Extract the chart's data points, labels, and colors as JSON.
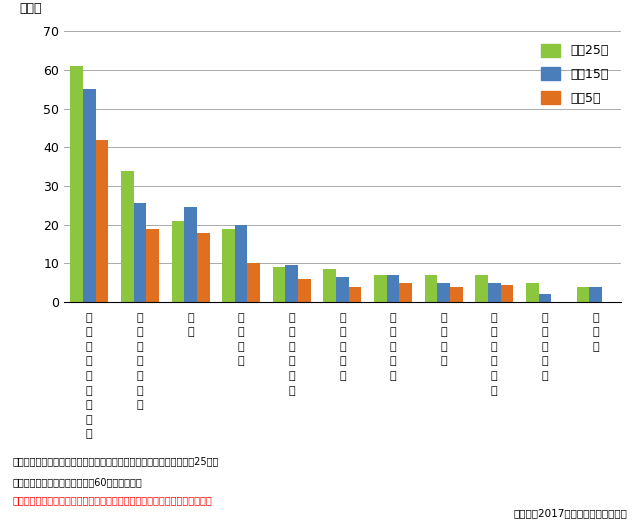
{
  "categories": [
    "参加したことがある",
    "健康・スポーツ",
    "趣味",
    "地域行事",
    "生活環境改善",
    "生産・就業",
    "教育・文化",
    "安全管理",
    "高齢者の支援",
    "子育て支援",
    "その他"
  ],
  "series": {
    "平成25年": [
      61,
      34,
      21,
      19,
      9,
      8.5,
      7,
      7,
      7,
      5,
      4
    ],
    "平成15年": [
      55,
      25.5,
      24.5,
      20,
      9.5,
      6.5,
      7,
      5,
      5,
      2,
      4
    ],
    "平成5年": [
      42,
      19,
      18,
      10,
      6,
      4,
      5,
      4,
      4.5,
      null,
      null
    ]
  },
  "colors": {
    "平成25年": "#8CC63F",
    "平成15年": "#4A7EBB",
    "平成5年": "#E07020"
  },
  "ylabel": "（％）",
  "ylim": [
    0,
    70
  ],
  "yticks": [
    0,
    10,
    20,
    30,
    40,
    50,
    60,
    70
  ],
  "note1": "資料：内閣府「高齢者の地域社会への参加に関する意識調査」（平成25年）",
  "note2": "（注１）　調査対象は、全国の60歳以上の男女",
  "note3": "（注２）　＊は、調査時に選択肢がないなどで、データが存在しないもの。",
  "source": "内閣府　2017年高齢者白書より作図",
  "background_color": "#FFFFFF",
  "grid_color": "#AAAAAA"
}
